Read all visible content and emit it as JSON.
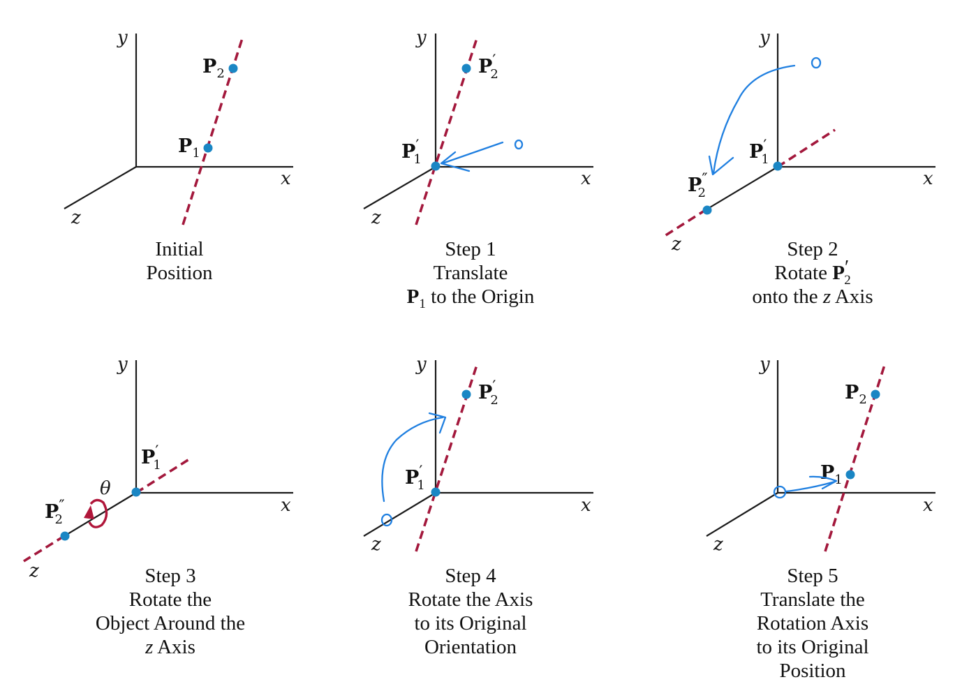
{
  "axes": {
    "x": "x",
    "y": "y",
    "z": "z"
  },
  "points": {
    "p1": "P",
    "p1_sub": "1",
    "p2": "P",
    "p2_sub": "2",
    "prime": "′",
    "dprime": "″"
  },
  "theta": "θ",
  "colors": {
    "rotation_axis": "#a3183c",
    "points": "#1a86c4",
    "annotations": "#1f7fe0"
  },
  "panels": {
    "initial": {
      "caption_1": "Initial",
      "caption_2": "Position"
    },
    "step1": {
      "caption_1": "Step 1",
      "caption_2": "Translate",
      "caption_3_point": "P",
      "caption_3_sub": "1",
      "caption_3_rest": " to the Origin"
    },
    "step2": {
      "caption_1": "Step 2",
      "caption_2_pre": "Rotate ",
      "caption_2_point": "P",
      "caption_2_prime": "′",
      "caption_2_sub": "2",
      "caption_3_pre": "onto the ",
      "caption_3_z": "z",
      "caption_3_post": " Axis"
    },
    "step3": {
      "caption_1": "Step 3",
      "caption_2": "Rotate the",
      "caption_3": "Object Around the",
      "caption_4_z": "z",
      "caption_4_post": " Axis"
    },
    "step4": {
      "caption_1": "Step 4",
      "caption_2": "Rotate the Axis",
      "caption_3": "to its Original",
      "caption_4": "Orientation"
    },
    "step5": {
      "caption_1": "Step 5",
      "caption_2": "Translate the",
      "caption_3": "Rotation Axis",
      "caption_4": "to its Original",
      "caption_5": "Position"
    }
  }
}
